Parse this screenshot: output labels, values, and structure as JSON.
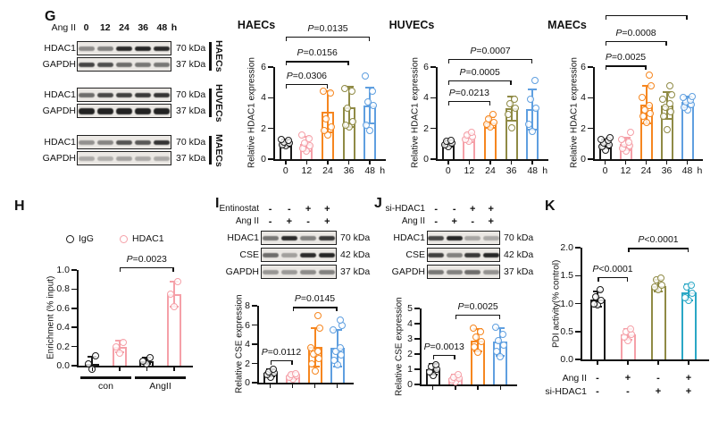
{
  "palette": {
    "black": "#1a1a1a",
    "pink": "#f5a0a8",
    "orange": "#f6861f",
    "olive": "#8f8a45",
    "blue": "#5f9fe0",
    "teal": "#2aa7c5"
  },
  "panels": {
    "G": {
      "label": "G",
      "blot": {
        "treatment_label": "Ang II",
        "timepoints": [
          "0",
          "12",
          "24",
          "36",
          "48"
        ],
        "time_unit": "h",
        "groups": [
          {
            "cell_type": "HAECs",
            "rows": [
              {
                "protein": "HDAC1",
                "kda": "70 kDa",
                "bands": [
                  0.45,
                  0.5,
                  0.92,
                  0.95,
                  0.92
                ]
              },
              {
                "protein": "GAPDH",
                "kda": "37 kDa",
                "bands": [
                  0.8,
                  0.75,
                  0.6,
                  0.55,
                  0.55
                ]
              }
            ]
          },
          {
            "cell_type": "HUVECs",
            "rows": [
              {
                "protein": "HDAC1",
                "kda": "70 kDa",
                "bands": [
                  0.6,
                  0.78,
                  0.82,
                  0.85,
                  0.88
                ]
              },
              {
                "protein": "GAPDH",
                "kda": "37 kDa",
                "bands": [
                  0.97,
                  0.97,
                  0.97,
                  0.97,
                  0.97
                ],
                "band_h": 7
              }
            ]
          },
          {
            "cell_type": "MAECs",
            "rows": [
              {
                "protein": "HDAC1",
                "kda": "70 kDa",
                "bands": [
                  0.42,
                  0.48,
                  0.72,
                  0.7,
                  0.88
                ]
              },
              {
                "protein": "GAPDH",
                "kda": "37 kDa",
                "bands": [
                  0.3,
                  0.28,
                  0.34,
                  0.3,
                  0.3
                ]
              }
            ]
          }
        ]
      }
    },
    "H": {
      "label": "H"
    },
    "I": {
      "label": "I",
      "blot": {
        "condition_rows": [
          {
            "label": "Entinostat",
            "values": [
              "-",
              "-",
              "+",
              "+"
            ]
          },
          {
            "label": "Ang II",
            "values": [
              "-",
              "+",
              "-",
              "+"
            ]
          }
        ],
        "rows": [
          {
            "protein": "HDAC1",
            "kda": "70 kDa",
            "bands": [
              0.55,
              0.92,
              0.5,
              0.85
            ]
          },
          {
            "protein": "CSE",
            "kda": "42 kDa",
            "bands": [
              0.6,
              0.35,
              0.92,
              0.95
            ]
          },
          {
            "protein": "GAPDH",
            "kda": "37 kDa",
            "bands": [
              0.4,
              0.38,
              0.45,
              0.5
            ]
          }
        ]
      }
    },
    "J": {
      "label": "J",
      "blot": {
        "condition_rows": [
          {
            "label": "si-HDAC1",
            "values": [
              "-",
              "-",
              "+",
              "+"
            ]
          },
          {
            "label": "Ang II",
            "values": [
              "-",
              "+",
              "-",
              "+"
            ]
          }
        ],
        "rows": [
          {
            "protein": "HDAC1",
            "kda": "70 kDa",
            "bands": [
              0.78,
              0.95,
              0.32,
              0.3
            ]
          },
          {
            "protein": "CSE",
            "kda": "42 kDa",
            "bands": [
              0.82,
              0.5,
              0.85,
              0.95
            ]
          },
          {
            "protein": "GAPDH",
            "kda": "37 kDa",
            "bands": [
              0.55,
              0.5,
              0.6,
              0.42
            ]
          }
        ]
      }
    },
    "K": {
      "label": "K"
    }
  },
  "chart_data": [
    {
      "id": "g-haecs",
      "type": "bar",
      "title": "HAECs",
      "ylabel": "Relative HDAC1 expression",
      "ymax": 6,
      "yticks": [
        "0",
        "2",
        "4",
        "6"
      ],
      "categories": [
        "0",
        "12",
        "24",
        "36",
        "48"
      ],
      "x_unit": "h",
      "colors": [
        "black",
        "pink",
        "orange",
        "olive",
        "blue"
      ],
      "values": [
        1.05,
        1.0,
        3.1,
        3.4,
        3.5
      ],
      "errors": [
        0.25,
        0.45,
        1.35,
        1.3,
        1.15
      ],
      "dots": [
        [
          0.85,
          0.95,
          1.05,
          1.1,
          1.25,
          1.3
        ],
        [
          0.55,
          0.7,
          0.9,
          1.05,
          1.35,
          1.6
        ],
        [
          1.6,
          1.85,
          2.1,
          2.65,
          4.3,
          4.4
        ],
        [
          2.1,
          2.2,
          2.45,
          3.3,
          4.4,
          4.6
        ],
        [
          1.85,
          2.2,
          3.5,
          3.7,
          4.4,
          5.4
        ]
      ],
      "comparisons": [
        {
          "from": 0,
          "to": 2,
          "label": "P=0.0306",
          "y": 4.9
        },
        {
          "from": 0,
          "to": 3,
          "label": "P=0.0156",
          "y": 6.4
        },
        {
          "from": 0,
          "to": 4,
          "label": "P=0.0135",
          "y": 8.0
        }
      ]
    },
    {
      "id": "g-huvecs",
      "type": "bar",
      "title": "HUVECs",
      "ylabel": "Relative HDAC1 expression",
      "ymax": 6,
      "yticks": [
        "0",
        "2",
        "4",
        "6"
      ],
      "categories": [
        "0",
        "12",
        "24",
        "36",
        "48"
      ],
      "x_unit": "h",
      "colors": [
        "black",
        "pink",
        "orange",
        "olive",
        "blue"
      ],
      "values": [
        1.0,
        1.4,
        2.4,
        3.3,
        3.25
      ],
      "errors": [
        0.2,
        0.3,
        0.35,
        0.8,
        1.3
      ],
      "dots": [
        [
          0.8,
          0.95,
          1.05,
          1.15,
          1.25
        ],
        [
          1.15,
          1.3,
          1.45,
          1.6,
          1.75
        ],
        [
          2.1,
          2.25,
          2.4,
          2.6,
          2.9
        ],
        [
          2.05,
          2.9,
          3.3,
          3.6,
          3.9
        ],
        [
          1.8,
          2.3,
          3.3,
          3.9,
          5.15
        ]
      ],
      "comparisons": [
        {
          "from": 0,
          "to": 2,
          "label": "P=0.0213",
          "y": 3.8
        },
        {
          "from": 0,
          "to": 3,
          "label": "P=0.0005",
          "y": 5.15
        },
        {
          "from": 0,
          "to": 4,
          "label": "P=0.0007",
          "y": 6.55
        }
      ]
    },
    {
      "id": "g-maecs",
      "type": "bar",
      "title": "MAECs",
      "ylabel": "Relative HDAC1 expression",
      "ymax": 6,
      "yticks": [
        "0",
        "2",
        "4",
        "6"
      ],
      "categories": [
        "0",
        "12",
        "24",
        "36",
        "48"
      ],
      "x_unit": "h",
      "colors": [
        "black",
        "pink",
        "orange",
        "olive",
        "blue"
      ],
      "values": [
        1.0,
        1.0,
        3.55,
        3.5,
        3.7
      ],
      "errors": [
        0.3,
        0.4,
        1.2,
        0.85,
        0.35
      ],
      "dots": [
        [
          0.6,
          0.8,
          0.95,
          1.05,
          1.2,
          1.3,
          1.4
        ],
        [
          0.5,
          0.7,
          0.85,
          1.0,
          1.1,
          1.3,
          1.75
        ],
        [
          2.4,
          2.8,
          3.0,
          3.2,
          3.5,
          4.0,
          4.75,
          5.5
        ],
        [
          1.9,
          2.8,
          3.1,
          3.35,
          3.6,
          3.9,
          4.2,
          4.75
        ],
        [
          3.2,
          3.4,
          3.55,
          3.7,
          3.85,
          4.0,
          4.1
        ]
      ],
      "comparisons": [
        {
          "from": 0,
          "to": 2,
          "label": "P=0.0025",
          "y": 6.1
        },
        {
          "from": 0,
          "to": 3,
          "label": "P=0.0008",
          "y": 7.7
        },
        {
          "from": 0,
          "to": 4,
          "label": "",
          "y": 9.4
        }
      ]
    },
    {
      "id": "h-chip",
      "type": "bar",
      "title": "",
      "ylabel": "Enrichment (% input)",
      "ymax": 1.0,
      "yticks": [
        "0.0",
        "0.2",
        "0.4",
        "0.6",
        "0.8",
        "1.0"
      ],
      "categories": [
        "",
        "",
        "",
        ""
      ],
      "x_unit": "",
      "colors": [
        "black",
        "pink",
        "black",
        "pink"
      ],
      "values": [
        0.02,
        0.2,
        0.05,
        0.75
      ],
      "errors": [
        0.07,
        0.06,
        0.03,
        0.13
      ],
      "dots": [
        [
          -0.04,
          0.02,
          0.1
        ],
        [
          0.13,
          0.2,
          0.24
        ],
        [
          0.02,
          0.05,
          0.08
        ],
        [
          0.62,
          0.75,
          0.88
        ]
      ],
      "comparisons": [
        {
          "from": 1,
          "to": 3,
          "label": "P=0.0023",
          "y": 1.03
        }
      ],
      "legend": [
        {
          "label": "IgG",
          "color": "black"
        },
        {
          "label": "HDAC1",
          "color": "pink"
        }
      ],
      "groups": [
        {
          "label": "con",
          "from": 0,
          "to": 1
        },
        {
          "label": "AngII",
          "from": 2,
          "to": 3
        }
      ]
    },
    {
      "id": "i-cse",
      "type": "bar",
      "title": "",
      "ylabel": "Relative CSE expression",
      "ymax": 8,
      "yticks": [
        "0",
        "2",
        "4",
        "6",
        "8"
      ],
      "categories": [
        "",
        "",
        "",
        ""
      ],
      "x_unit": "",
      "colors": [
        "black",
        "pink",
        "orange",
        "blue"
      ],
      "values": [
        1.0,
        0.7,
        3.7,
        3.6
      ],
      "errors": [
        0.35,
        0.3,
        2.0,
        1.9
      ],
      "dots": [
        [
          0.6,
          0.85,
          1.0,
          1.15,
          1.35
        ],
        [
          0.4,
          0.55,
          0.7,
          0.8,
          0.95
        ],
        [
          1.2,
          2.0,
          2.5,
          3.0,
          3.3,
          3.6,
          5.7,
          7.0
        ],
        [
          1.9,
          2.3,
          2.9,
          3.3,
          3.6,
          5.5,
          6.0,
          6.5
        ]
      ],
      "comparisons": [
        {
          "from": 0,
          "to": 1,
          "label": "P=0.0112",
          "y": 2.35
        },
        {
          "from": 1,
          "to": 3,
          "label": "P=0.0145",
          "y": 7.9
        }
      ]
    },
    {
      "id": "j-cse",
      "type": "bar",
      "title": "",
      "ylabel": "Relative CSE expression",
      "ymax": 5,
      "yticks": [
        "0",
        "1",
        "2",
        "3",
        "4",
        "5"
      ],
      "categories": [
        "",
        "",
        "",
        ""
      ],
      "x_unit": "",
      "colors": [
        "black",
        "pink",
        "orange",
        "blue"
      ],
      "values": [
        1.0,
        0.42,
        2.9,
        2.8
      ],
      "errors": [
        0.35,
        0.2,
        0.75,
        0.9
      ],
      "dots": [
        [
          0.6,
          0.8,
          1.0,
          1.15,
          1.3
        ],
        [
          0.2,
          0.3,
          0.4,
          0.5,
          0.62
        ],
        [
          2.1,
          2.5,
          2.8,
          3.1,
          3.5,
          3.7
        ],
        [
          1.85,
          2.2,
          2.6,
          2.9,
          3.3,
          3.75
        ]
      ],
      "comparisons": [
        {
          "from": 0,
          "to": 1,
          "label": "P=0.0013",
          "y": 1.95
        },
        {
          "from": 1,
          "to": 3,
          "label": "P=0.0025",
          "y": 4.6
        }
      ]
    },
    {
      "id": "k-pdi",
      "type": "bar",
      "title": "",
      "ylabel": "PDI activity(% control)",
      "ymax": 2.0,
      "yticks": [
        "0.0",
        "0.5",
        "1.0",
        "1.5",
        "2.0"
      ],
      "categories": [
        "",
        "",
        "",
        ""
      ],
      "x_unit": "",
      "colors": [
        "black",
        "pink",
        "olive",
        "teal"
      ],
      "values": [
        1.08,
        0.45,
        1.32,
        1.2
      ],
      "errors": [
        0.13,
        0.1,
        0.1,
        0.15
      ],
      "dots": [
        [
          0.97,
          1.0,
          1.05,
          1.12,
          1.25
        ],
        [
          0.33,
          0.4,
          0.45,
          0.5,
          0.55
        ],
        [
          1.25,
          1.3,
          1.33,
          1.42,
          1.45
        ],
        [
          1.05,
          1.1,
          1.18,
          1.3,
          1.33
        ]
      ],
      "comparisons": [
        {
          "from": 0,
          "to": 1,
          "label": "P<0.0001",
          "y": 1.48
        },
        {
          "from": 1,
          "to": 3,
          "label": "P<0.0001",
          "y": 2.0
        }
      ],
      "xrows": [
        {
          "label": "Ang II",
          "values": [
            "-",
            "+",
            "-",
            "+"
          ]
        },
        {
          "label": "si-HDAC1",
          "values": [
            "-",
            "-",
            "+",
            "+"
          ]
        }
      ]
    }
  ]
}
